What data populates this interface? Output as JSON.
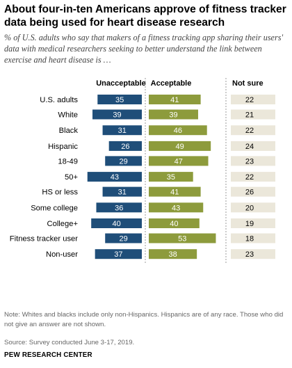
{
  "title": "About four-in-ten Americans approve of fitness tracker data being used for heart disease research",
  "subtitle": "% of U.S. adults who say that makers of a fitness tracking app sharing their users' data with medical researchers seeking to better understand the link between exercise and heart disease is …",
  "note": "Note: Whites and blacks include only non-Hispanics. Hispanics are of any race. Those who did not give an answer are not shown.",
  "source": "Source: Survey conducted June 3-17, 2019.",
  "brand": "PEW RESEARCH CENTER",
  "colors": {
    "unacceptable": "#1f4e79",
    "acceptable": "#8d9b3c",
    "not_sure": "#ebe7da",
    "divider": "#9a9a9a"
  },
  "chart_data": {
    "type": "bar",
    "orientation": "horizontal",
    "categories": [
      "U.S. adults",
      "White",
      "Black",
      "Hispanic",
      "18-49",
      "50+",
      "HS or less",
      "Some college",
      "College+",
      "Fitness tracker user",
      "Non-user"
    ],
    "groups": [
      [
        0
      ],
      [
        1,
        2,
        3
      ],
      [
        4,
        5
      ],
      [
        6,
        7,
        8
      ],
      [
        9,
        10
      ]
    ],
    "series": [
      {
        "name": "Unacceptable",
        "values": [
          35,
          39,
          31,
          26,
          29,
          43,
          31,
          36,
          40,
          29,
          37
        ]
      },
      {
        "name": "Acceptable",
        "values": [
          41,
          39,
          46,
          49,
          47,
          35,
          41,
          43,
          40,
          53,
          38
        ]
      },
      {
        "name": "Not sure",
        "values": [
          22,
          21,
          22,
          24,
          23,
          22,
          26,
          20,
          19,
          18,
          23
        ]
      }
    ]
  }
}
